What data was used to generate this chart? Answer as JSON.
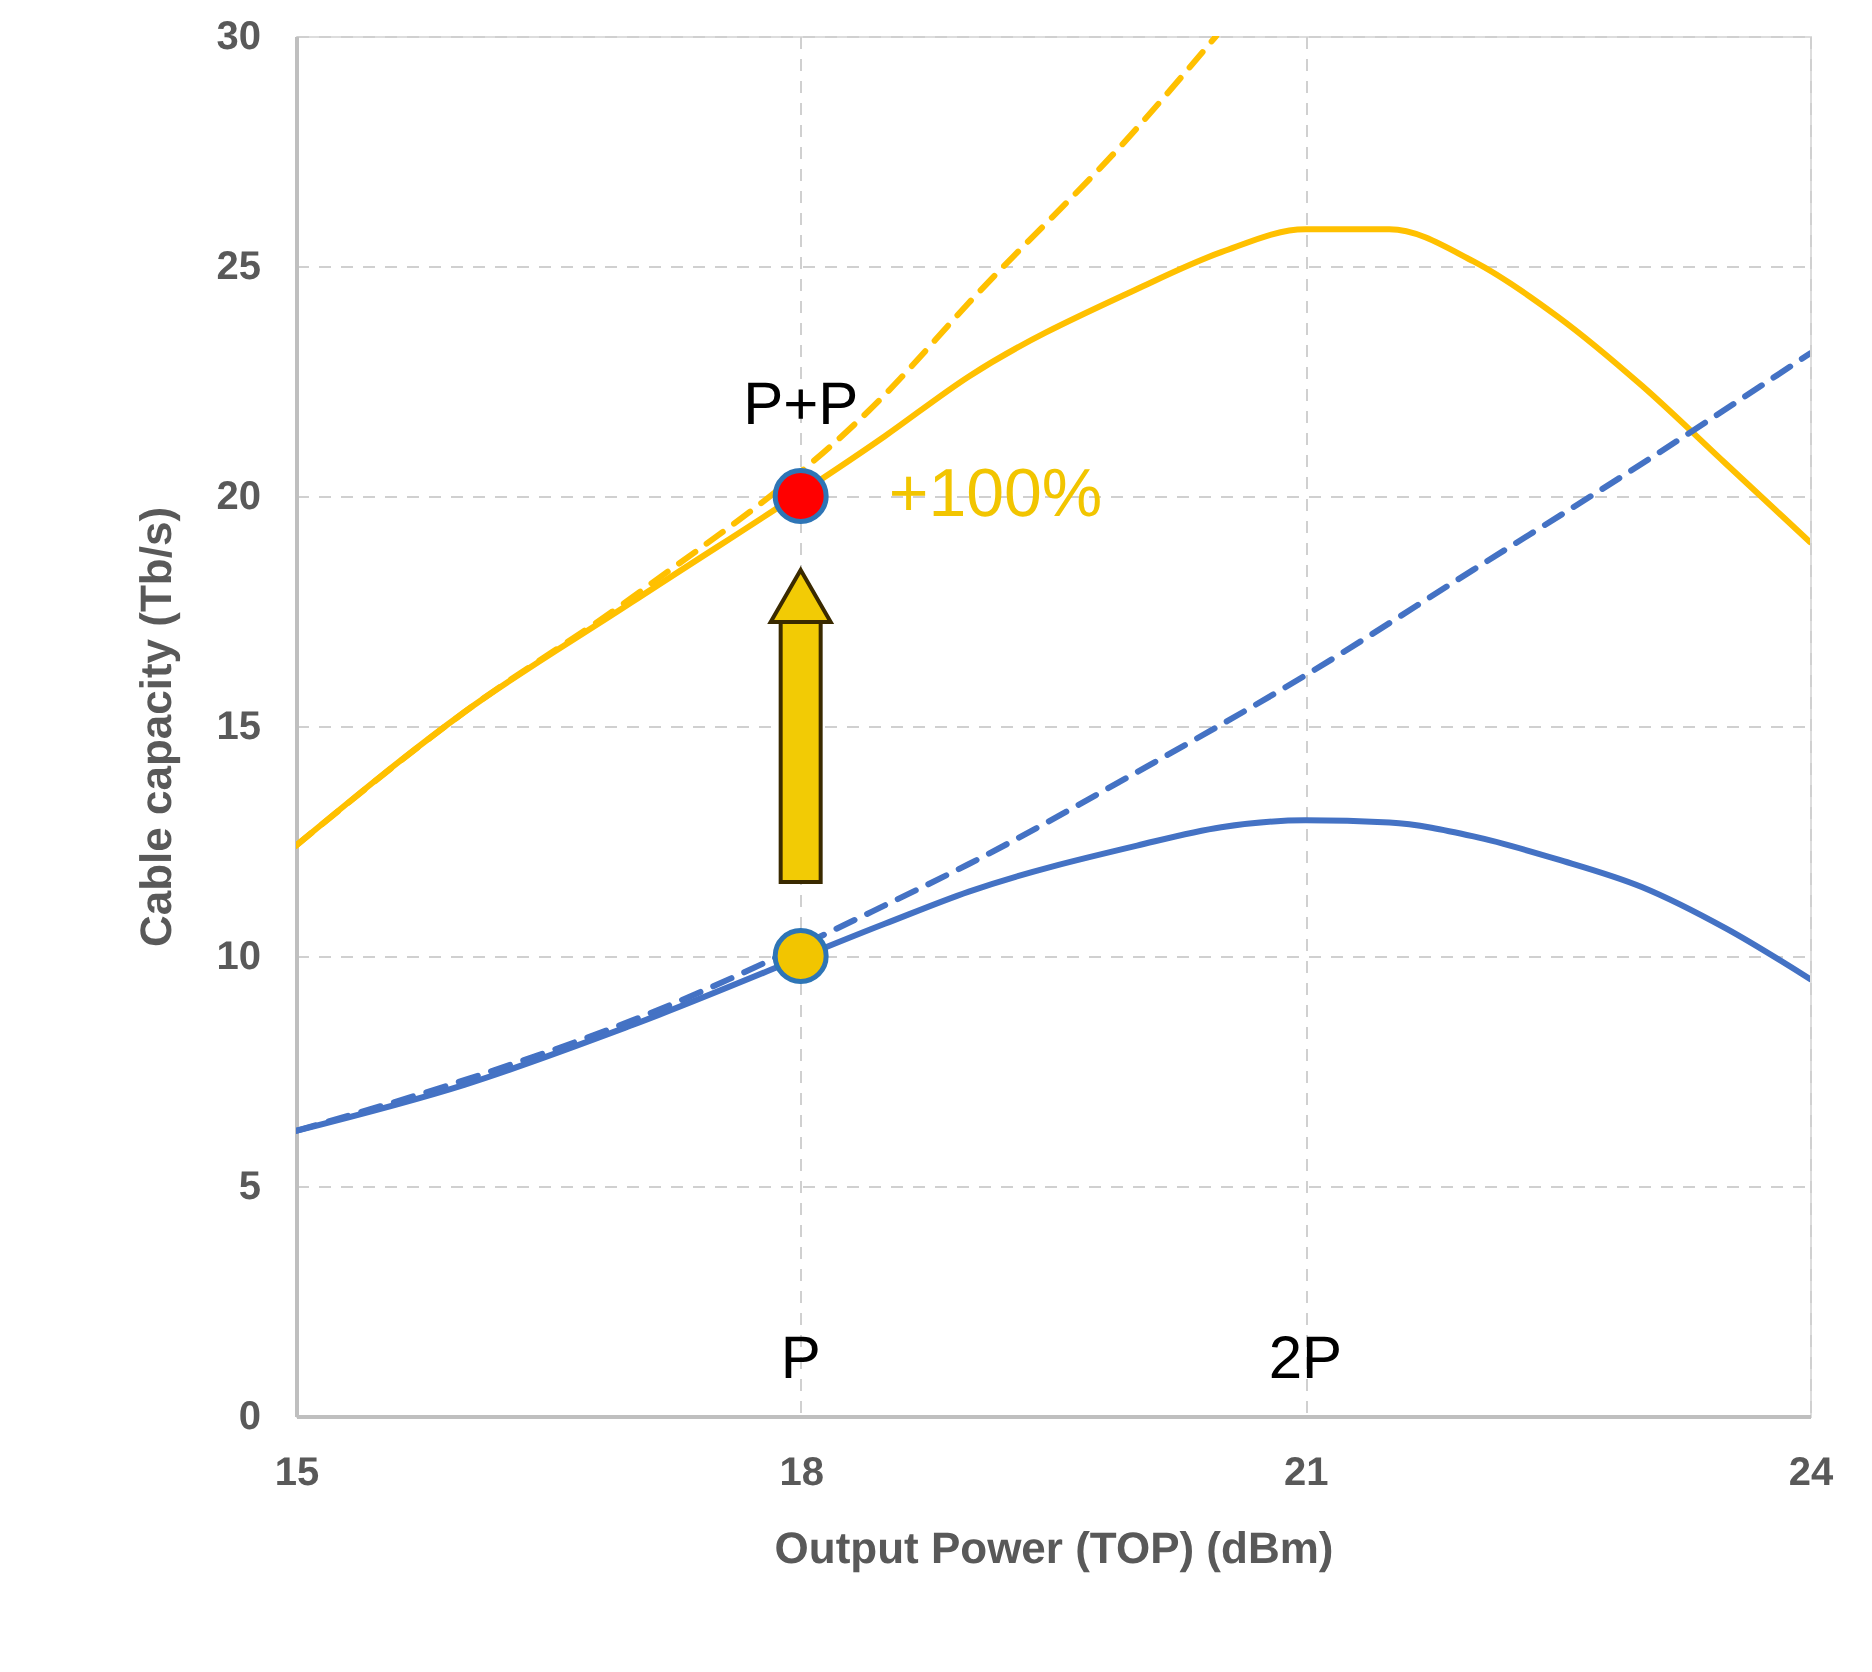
{
  "chart_data": {
    "type": "line",
    "xlabel": "Output Power (TOP) (dBm)",
    "ylabel": "Cable capacity (Tb/s)",
    "xlim": [
      15,
      24
    ],
    "xticks": [
      15,
      18,
      21,
      24
    ],
    "ylim": [
      0,
      30
    ],
    "yticks": [
      0,
      5,
      10,
      15,
      20,
      25,
      30
    ],
    "grid": true,
    "marker": "none",
    "series": [
      {
        "color": "#ffc000",
        "line_style": "dashed",
        "x": [
          15,
          16,
          17,
          18.5,
          19,
          20,
          20.47
        ],
        "values": [
          12.4,
          15.3,
          17.8,
          22.2,
          24.2,
          28.0,
          30
        ]
      },
      {
        "color": "#ffc000",
        "line_style": "solid",
        "x": [
          15,
          16,
          17,
          18.5,
          19,
          20,
          20.5,
          21,
          21.5,
          22,
          22.5,
          23,
          23.5,
          24
        ],
        "values": [
          12.4,
          15.3,
          17.7,
          21.3,
          22.6,
          24.5,
          25.3,
          25.8,
          25.8,
          25.1,
          23.9,
          22.4,
          20.7,
          19.0
        ]
      },
      {
        "color": "#4472c4",
        "line_style": "dashed",
        "x": [
          15,
          16,
          17,
          18.5,
          19,
          20,
          21,
          22,
          23,
          24
        ],
        "values": [
          6.2,
          7.3,
          8.6,
          11.1,
          12.0,
          14.0,
          16.1,
          18.4,
          20.7,
          23.1
        ]
      },
      {
        "color": "#4472c4",
        "line_style": "solid",
        "x": [
          15,
          16,
          17,
          18.5,
          19,
          20,
          20.5,
          21,
          21.5,
          22,
          22.5,
          23,
          23.5,
          24
        ],
        "values": [
          6.2,
          7.2,
          8.5,
          10.7,
          11.4,
          12.4,
          12.8,
          12.95,
          12.9,
          12.6,
          12.1,
          11.5,
          10.6,
          9.5
        ]
      },
      {
        "type": "scatter",
        "marker": "circle",
        "x": [
          18,
          18
        ],
        "values": [
          10,
          20
        ],
        "colors": [
          "#f2c500",
          "#ff0000"
        ]
      }
    ],
    "annotations": [
      "P+P",
      {
        "text": "+100%",
        "x": 18,
        "y": 20
      },
      "P",
      "2P"
    ]
  }
}
